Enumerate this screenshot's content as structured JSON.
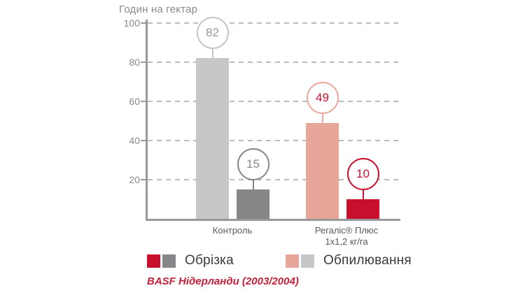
{
  "chart": {
    "title": "Годин на гектар",
    "y_axis": {
      "ticks": [
        100,
        80,
        60,
        40,
        20
      ]
    },
    "x_axis": {
      "category_labels": [
        [
          "Контроль"
        ],
        [
          "Регаліс® Плюс",
          "1х1,2 кг/га"
        ]
      ]
    }
  },
  "chart_data": {
    "type": "bar",
    "title": "Годин на гектар",
    "categories": [
      "Контроль",
      "Регаліс® Плюс 1х1,2 кг/га"
    ],
    "series": [
      {
        "name": "Обпилювання",
        "values": [
          82,
          49
        ]
      },
      {
        "name": "Обрізка",
        "values": [
          15,
          10
        ]
      }
    ],
    "ylim": [
      0,
      100
    ],
    "y_tick_step": 20,
    "grid": "horizontal dashed",
    "legend_position": "bottom",
    "value_labels": "circled badges above each bar",
    "bars": [
      {
        "value": 82,
        "category": "Контроль",
        "series": "Обпилювання",
        "fill": "#c7c7c9",
        "badge_stroke": "#c6c6c8",
        "badge_text_color": "#98989a"
      },
      {
        "value": 15,
        "category": "Контроль",
        "series": "Обрізка",
        "fill": "#87878a",
        "badge_stroke": "#87878a",
        "badge_text_color": "#8a8a8c"
      },
      {
        "value": 49,
        "category": "Регаліс® Плюс 1х1,2 кг/га",
        "series": "Обпилювання",
        "fill": "#e8a69a",
        "badge_stroke": "#eba89c",
        "badge_text_color": "#c8102e"
      },
      {
        "value": 10,
        "category": "Регаліс® Плюс 1х1,2 кг/га",
        "series": "Обрізка",
        "fill": "#c8102e",
        "badge_stroke": "#c8102e",
        "badge_text_color": "#c8102e"
      }
    ]
  },
  "legend": {
    "items": [
      {
        "label": "Обрізка",
        "swatches": [
          "#c8102e",
          "#87878a"
        ]
      },
      {
        "label": "Обпилювання",
        "swatches": [
          "#e8a69a",
          "#c7c7c9"
        ]
      }
    ]
  },
  "source": "BASF Нідерланди (2003/2004)",
  "colors": {
    "background": "#ffffff",
    "axis": "#98989a",
    "grid": "#bbbbbd",
    "title_text": "#8a8a8c",
    "tick_text": "#8a8a8c",
    "xlabel_text": "#58585a",
    "legend_text": "#3a3a3c",
    "source_text": "#c5203a",
    "brand_red": "#c8102e",
    "salmon": "#e8a69a",
    "light_gray": "#c7c7c9",
    "dark_gray": "#87878a"
  }
}
